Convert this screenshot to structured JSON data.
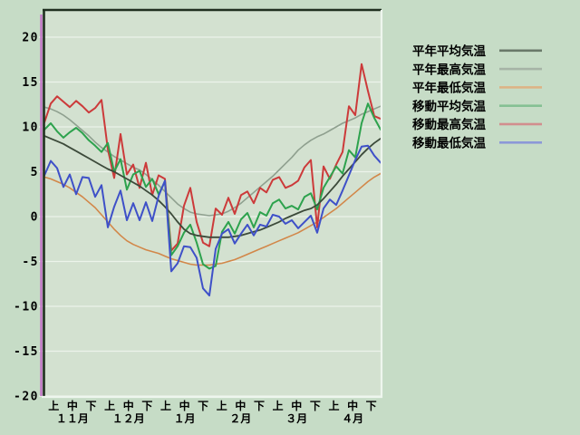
{
  "window": {
    "background_color": "#c6dcc6",
    "plot_background_color": "#d3e1d0",
    "grid_color": "#ecf3ea",
    "frame_dark_color": "#1f2f1f",
    "frame_light_color": "#eef6ee",
    "accent_line_color": "#c273c6"
  },
  "chart_data": {
    "type": "line",
    "title": "",
    "xlabel": "",
    "ylabel": "",
    "grid": true,
    "legend_position": "right",
    "y_axis": {
      "ticks": [
        20,
        15,
        10,
        5,
        0,
        -5,
        -10,
        -15,
        -20
      ],
      "ylim": [
        -20,
        23.1
      ]
    },
    "x_axis": {
      "months": [
        "１１月",
        "１２月",
        "１月",
        "２月",
        "３月",
        "４月"
      ],
      "period_pattern": [
        "上",
        "中",
        "下"
      ],
      "periods": [
        "11月上",
        "11月中",
        "11月下",
        "12月上",
        "12月中",
        "12月下",
        "1月上",
        "1月中",
        "1月下",
        "2月上",
        "2月中",
        "2月下",
        "3月上",
        "3月中",
        "3月下",
        "4月上",
        "4月中",
        "4月下"
      ]
    },
    "points_per_period": 3,
    "series": [
      {
        "name": "平年平均気温",
        "color": "#3c4a3a",
        "legend_color": "#697969",
        "width": 1.8,
        "values": [
          9.0,
          8.7,
          8.4,
          8.1,
          7.7,
          7.3,
          6.9,
          6.5,
          6.1,
          5.7,
          5.3,
          5.0,
          4.6,
          4.2,
          3.8,
          3.4,
          2.9,
          2.4,
          1.8,
          1.1,
          0.3,
          -0.6,
          -1.4,
          -1.9,
          -2.1,
          -2.2,
          -2.3,
          -2.3,
          -2.3,
          -2.3,
          -2.2,
          -2.1,
          -1.9,
          -1.7,
          -1.5,
          -1.2,
          -0.9,
          -0.6,
          -0.2,
          0.1,
          0.4,
          0.7,
          0.9,
          1.3,
          2.0,
          2.8,
          3.6,
          4.5,
          5.3,
          6.1,
          6.9,
          7.6,
          8.2,
          8.7
        ]
      },
      {
        "name": "平年最高気温",
        "color": "#8fa08f",
        "legend_color": "#a6b4a6",
        "width": 1.6,
        "values": [
          12.2,
          12.0,
          11.7,
          11.3,
          10.8,
          10.2,
          9.6,
          9.0,
          8.3,
          7.7,
          7.2,
          6.7,
          6.3,
          5.9,
          5.5,
          5.2,
          4.7,
          4.1,
          3.5,
          2.8,
          2.1,
          1.4,
          0.9,
          0.5,
          0.3,
          0.2,
          0.1,
          0.2,
          0.3,
          0.6,
          1.0,
          1.5,
          2.1,
          2.7,
          3.3,
          3.9,
          4.5,
          5.2,
          5.9,
          6.6,
          7.4,
          8.0,
          8.5,
          8.9,
          9.2,
          9.6,
          10.0,
          10.4,
          10.7,
          11.0,
          11.4,
          11.7,
          12.0,
          12.3
        ]
      },
      {
        "name": "平年最低気温",
        "color": "#d28749",
        "legend_color": "#dcb386",
        "width": 1.6,
        "values": [
          4.4,
          4.2,
          3.9,
          3.6,
          3.2,
          2.7,
          2.2,
          1.6,
          1.0,
          0.2,
          -0.6,
          -1.4,
          -2.1,
          -2.7,
          -3.1,
          -3.4,
          -3.7,
          -3.9,
          -4.1,
          -4.4,
          -4.7,
          -4.9,
          -5.1,
          -5.3,
          -5.4,
          -5.4,
          -5.4,
          -5.3,
          -5.2,
          -5.0,
          -4.8,
          -4.5,
          -4.2,
          -3.9,
          -3.6,
          -3.3,
          -3.0,
          -2.7,
          -2.4,
          -2.1,
          -1.8,
          -1.4,
          -1.0,
          -0.6,
          -0.1,
          0.4,
          0.9,
          1.5,
          2.1,
          2.7,
          3.3,
          3.9,
          4.4,
          4.8
        ]
      },
      {
        "name": "移動平均気温",
        "color": "#2da24d",
        "legend_color": "#85c093",
        "width": 2,
        "values": [
          9.7,
          10.4,
          9.5,
          8.8,
          9.4,
          9.9,
          9.3,
          8.5,
          7.9,
          7.2,
          8.2,
          5.0,
          6.4,
          3.0,
          4.7,
          5.1,
          3.3,
          4.2,
          2.5,
          3.9,
          -4.3,
          -3.3,
          -1.8,
          -0.9,
          -2.9,
          -5.3,
          -5.8,
          -5.5,
          -1.7,
          -0.6,
          -1.9,
          -0.3,
          0.4,
          -1.2,
          0.5,
          0.1,
          1.5,
          1.9,
          0.9,
          1.2,
          0.8,
          2.2,
          2.6,
          0.8,
          3.2,
          4.4,
          5.6,
          4.8,
          7.4,
          6.6,
          10.4,
          12.6,
          11.0,
          9.7
        ]
      },
      {
        "name": "移動最高気温",
        "color": "#cc3a3a",
        "legend_color": "#d28e8e",
        "width": 2,
        "values": [
          10.5,
          12.6,
          13.4,
          12.8,
          12.2,
          12.9,
          12.3,
          11.6,
          12.1,
          13.0,
          7.5,
          4.3,
          9.2,
          4.7,
          5.8,
          3.2,
          6.0,
          2.4,
          4.6,
          4.2,
          -3.8,
          -3.0,
          1.2,
          3.2,
          -0.6,
          -2.9,
          -3.3,
          0.9,
          0.2,
          2.1,
          0.3,
          2.4,
          2.8,
          1.5,
          3.2,
          2.7,
          4.1,
          4.4,
          3.2,
          3.5,
          4.0,
          5.5,
          6.3,
          -1.2,
          5.6,
          4.2,
          5.8,
          7.2,
          12.3,
          11.3,
          17.0,
          14.0,
          11.2,
          10.9
        ]
      },
      {
        "name": "移動最低気温",
        "color": "#3e50c8",
        "legend_color": "#8c98d8",
        "width": 2,
        "values": [
          4.6,
          6.2,
          5.4,
          3.3,
          4.7,
          2.5,
          4.4,
          4.3,
          2.2,
          3.5,
          -1.2,
          1.1,
          2.9,
          -0.4,
          1.5,
          -0.4,
          1.6,
          -0.5,
          2.3,
          4.0,
          -6.1,
          -5.2,
          -3.3,
          -3.4,
          -4.6,
          -8.0,
          -8.8,
          -3.6,
          -1.9,
          -1.4,
          -3.0,
          -1.9,
          -0.9,
          -2.1,
          -0.9,
          -1.1,
          0.2,
          0.0,
          -0.8,
          -0.4,
          -1.3,
          -0.6,
          0.1,
          -1.8,
          0.9,
          1.9,
          1.3,
          2.9,
          4.6,
          6.3,
          7.8,
          7.9,
          6.8,
          6.0
        ]
      }
    ]
  }
}
